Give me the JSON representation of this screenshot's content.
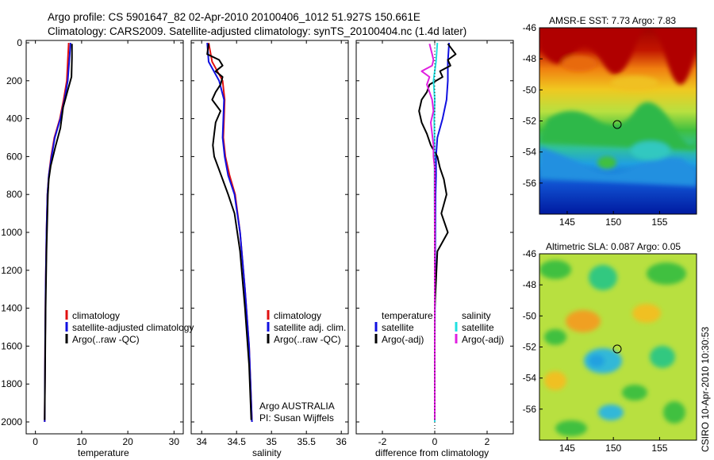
{
  "header": {
    "line1": "Argo profile: CS 5901647_82 02-Apr-2010 20100406_1012 51.927S 150.661E",
    "line2": "Climatology: CARS2009. Satellite-adjusted climatology: synTS_20100404.nc (1.4d later)"
  },
  "colors": {
    "climatology": "#e01010",
    "satellite": "#1010e0",
    "argo": "#000000",
    "sat_diff": "#20e0e0",
    "argo_diff": "#e020e0"
  },
  "panels": {
    "temperature": {
      "xlabel": "temperature",
      "xticks": [
        "0",
        "10",
        "20",
        "30"
      ],
      "yticks": [
        "0",
        "200",
        "400",
        "600",
        "800",
        "1000",
        "1200",
        "1400",
        "1600",
        "1800",
        "2000"
      ],
      "legend": [
        "climatology",
        "satellite-adjusted climatology",
        "Argo(..raw -QC)"
      ]
    },
    "salinity": {
      "xlabel": "salinity",
      "xticks": [
        "34",
        "34.5",
        "35",
        "35.5",
        "36"
      ],
      "legend": [
        "climatology",
        "satellite adj. clim.",
        "Argo(..raw -QC)"
      ],
      "credit1": "Argo AUSTRALIA",
      "credit2": "PI: Susan Wijffels"
    },
    "difference": {
      "xlabel": "difference from climatology",
      "xticks": [
        "-2",
        "0",
        "2"
      ],
      "legend_left_title": "temperature",
      "legend_left": [
        "satellite",
        "Argo(-adj)"
      ],
      "legend_right_title": "salinity",
      "legend_right": [
        "satellite",
        "Argo(-adj)"
      ]
    }
  },
  "maps": {
    "sst": {
      "title": "AMSR-E SST: 7.73 Argo: 7.83",
      "yticks": [
        "-46",
        "-48",
        "-50",
        "-52",
        "-54",
        "-56"
      ],
      "xticks": [
        "145",
        "150",
        "155"
      ]
    },
    "sla": {
      "title": "Altimetric SLA: 0.087 Argo: 0.05",
      "yticks": [
        "-46",
        "-48",
        "-50",
        "-52",
        "-54",
        "-56"
      ],
      "xticks": [
        "145",
        "150",
        "155"
      ]
    },
    "argo_location": {
      "lon": 150.661,
      "lat": -51.927
    },
    "stamp": "CSIRO 10-Apr-2010 10:30:53"
  },
  "chart_data": [
    {
      "type": "line",
      "ylabel": "",
      "xlabel": "temperature",
      "xlim": [
        -2,
        32
      ],
      "ylim": [
        2000,
        0
      ],
      "series": [
        {
          "name": "climatology",
          "x": [
            7.2,
            7.0,
            6.8,
            6.1,
            5.3,
            4.1,
            3.4,
            2.9,
            2.6,
            2.4,
            2.2,
            2.1,
            2.0
          ],
          "y": [
            0,
            100,
            200,
            300,
            400,
            500,
            600,
            700,
            800,
            1000,
            1300,
            1600,
            2000
          ]
        },
        {
          "name": "satellite-adjusted climatology",
          "x": [
            7.6,
            7.3,
            7.0,
            6.3,
            5.4,
            4.2,
            3.5,
            2.9,
            2.6,
            2.4,
            2.2,
            2.1,
            2.0
          ],
          "y": [
            0,
            100,
            200,
            300,
            400,
            500,
            600,
            700,
            800,
            1000,
            1300,
            1600,
            2000
          ]
        },
        {
          "name": "Argo(..raw -QC)",
          "x": [
            7.9,
            7.9,
            7.8,
            7.0,
            6.0,
            5.4,
            4.3,
            3.3,
            2.9,
            2.7,
            2.6,
            2.4,
            2.2,
            2.1,
            2.0
          ],
          "y": [
            5,
            80,
            180,
            250,
            340,
            450,
            550,
            650,
            720,
            800,
            900,
            1100,
            1400,
            1700,
            1990
          ]
        }
      ]
    },
    {
      "type": "line",
      "xlabel": "salinity",
      "xlim": [
        33.85,
        36.1
      ],
      "ylim": [
        2000,
        0
      ],
      "series": [
        {
          "name": "climatology",
          "x": [
            34.1,
            34.15,
            34.3,
            34.33,
            34.32,
            34.31,
            34.34,
            34.4,
            34.48,
            34.55,
            34.62,
            34.68,
            34.72
          ],
          "y": [
            0,
            100,
            200,
            300,
            400,
            500,
            600,
            700,
            800,
            1000,
            1300,
            1600,
            2000
          ]
        },
        {
          "name": "satellite adj. clim.",
          "x": [
            34.08,
            34.1,
            34.25,
            34.32,
            34.31,
            34.3,
            34.33,
            34.38,
            34.47,
            34.55,
            34.62,
            34.68,
            34.72
          ],
          "y": [
            0,
            100,
            200,
            300,
            400,
            500,
            600,
            700,
            800,
            1000,
            1300,
            1600,
            2000
          ]
        },
        {
          "name": "Argo(..raw -QC)",
          "x": [
            34.1,
            34.08,
            34.25,
            34.3,
            34.2,
            34.3,
            34.27,
            34.2,
            34.15,
            34.27,
            34.2,
            34.18,
            34.16,
            34.18,
            34.24,
            34.3,
            34.38,
            34.47,
            34.55,
            34.62,
            34.68,
            34.71
          ],
          "y": [
            5,
            60,
            90,
            120,
            150,
            180,
            220,
            260,
            300,
            360,
            420,
            480,
            540,
            600,
            660,
            720,
            800,
            900,
            1100,
            1400,
            1700,
            1990
          ]
        }
      ]
    },
    {
      "type": "line",
      "xlabel": "difference from climatology",
      "xlim": [
        -3,
        3
      ],
      "ylim": [
        2000,
        0
      ],
      "series": [
        {
          "name": "temperature satellite",
          "x": [
            0.55,
            0.5,
            0.5,
            0.45,
            0.3,
            0.1,
            0.05,
            0.05,
            0.03,
            0.02,
            0.01,
            0.0,
            0.0
          ],
          "y": [
            0,
            100,
            200,
            300,
            400,
            500,
            600,
            700,
            800,
            1000,
            1300,
            1600,
            2000
          ]
        },
        {
          "name": "temperature Argo(-adj)",
          "x": [
            0.5,
            0.8,
            0.5,
            0.6,
            0.2,
            0.3,
            -0.2,
            -0.3,
            -0.5,
            -0.6,
            -0.5,
            -0.3,
            -0.15,
            0.1,
            0.2,
            0.35,
            0.45,
            0.25,
            0.5,
            0.1,
            0.0,
            0.0
          ],
          "y": [
            5,
            60,
            90,
            120,
            150,
            180,
            220,
            260,
            300,
            360,
            420,
            480,
            540,
            600,
            660,
            720,
            800,
            900,
            1000,
            1100,
            1400,
            1990
          ]
        },
        {
          "name": "salinity satellite",
          "x": [
            0.1,
            0.05,
            -0.05,
            0.0,
            -0.02,
            -0.01,
            -0.01,
            -0.01,
            -0.01,
            0.0,
            0.0,
            0.0,
            0.0
          ],
          "y": [
            0,
            100,
            200,
            300,
            400,
            500,
            600,
            700,
            800,
            1000,
            1300,
            1600,
            2000
          ]
        },
        {
          "name": "salinity Argo(-adj)",
          "x": [
            -0.2,
            -0.1,
            -0.05,
            -0.1,
            -0.5,
            -0.2,
            -0.3,
            -0.2,
            -0.1,
            -0.05,
            -0.15,
            -0.1,
            -0.05,
            -0.05,
            0.0,
            0.0,
            0.0,
            0.0,
            0.0,
            0.0,
            0.0
          ],
          "y": [
            5,
            60,
            90,
            120,
            150,
            180,
            220,
            260,
            300,
            360,
            420,
            480,
            540,
            600,
            660,
            720,
            800,
            900,
            1100,
            1400,
            1990
          ]
        }
      ]
    }
  ]
}
